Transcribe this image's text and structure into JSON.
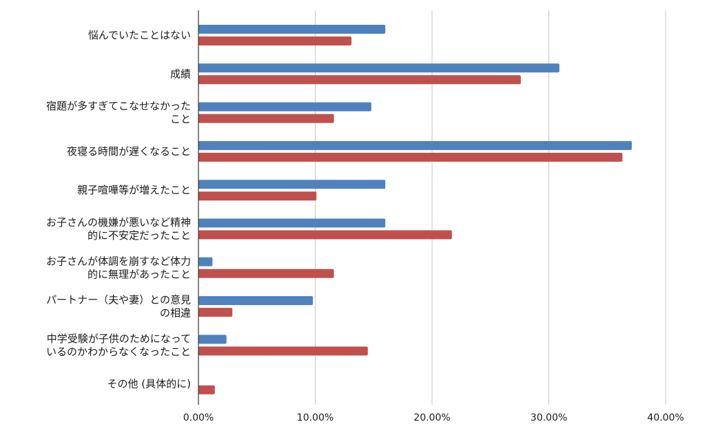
{
  "chart_data": {
    "type": "bar",
    "orientation": "horizontal",
    "title": "",
    "xlabel": "",
    "ylabel": "",
    "xlim": [
      0,
      0.4
    ],
    "x_ticks": [
      "0.00%",
      "10.00%",
      "20.00%",
      "30.00%",
      "40.00%"
    ],
    "x_tick_values": [
      0,
      0.1,
      0.2,
      0.3,
      0.4
    ],
    "grid": "vertical",
    "legend": "none",
    "categories": [
      [
        "悩んでいたことはない"
      ],
      [
        "成績"
      ],
      [
        "宿題が多すぎてこなせなかった",
        "こと"
      ],
      [
        "夜寝る時間が遅くなること"
      ],
      [
        "親子喧嘩等が増えたこと"
      ],
      [
        "お子さんの機嫌が悪いなど精神",
        "的に不安定だったこと"
      ],
      [
        "お子さんが体調を崩すなど体力",
        "的に無理があったこと"
      ],
      [
        "パートナー（夫や妻）との意見",
        "の相違"
      ],
      [
        "中学受験が子供のためになって",
        "いるのかわからなくなったこと"
      ],
      [
        "その他 (具体的に)"
      ]
    ],
    "series": [
      {
        "color": "#4f81bd",
        "values": [
          0.16,
          0.309,
          0.148,
          0.371,
          0.16,
          0.16,
          0.012,
          0.098,
          0.024,
          0
        ]
      },
      {
        "color": "#c0504d",
        "values": [
          0.131,
          0.276,
          0.116,
          0.363,
          0.101,
          0.217,
          0.116,
          0.029,
          0.145,
          0.014
        ]
      }
    ],
    "grid_color": "#c8c8c8",
    "axis_color": "#333333"
  }
}
